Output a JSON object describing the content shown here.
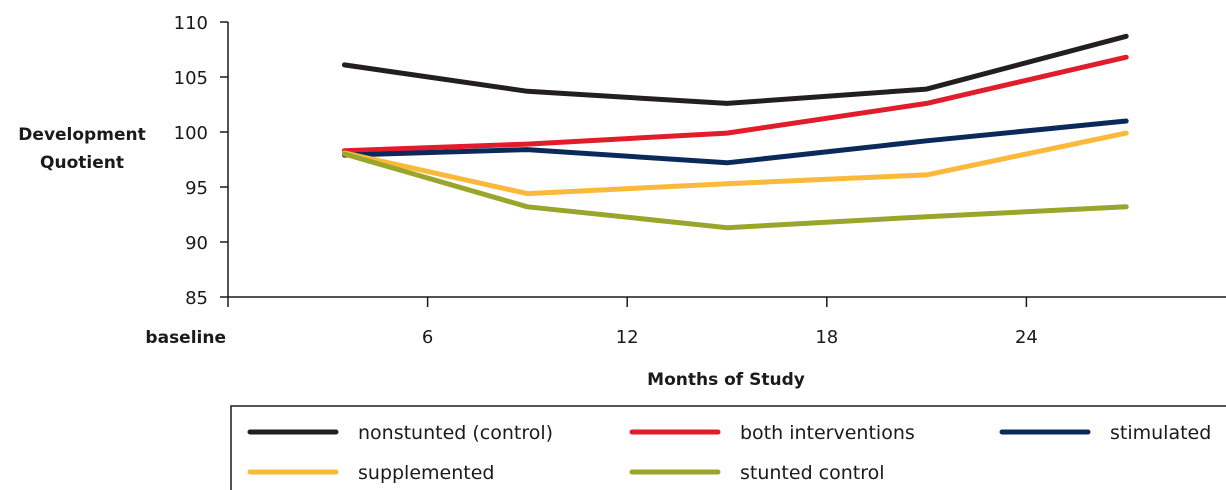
{
  "chart_data": {
    "type": "line",
    "title": "",
    "ylabel_lines": [
      "Development",
      "Quotient"
    ],
    "xlabel": "Months of Study",
    "x_ticks": [
      "baseline",
      "6",
      "12",
      "18",
      "24"
    ],
    "x_tick_values": [
      0,
      6,
      12,
      18,
      24
    ],
    "xlim": [
      0,
      30
    ],
    "ylim": [
      85,
      110
    ],
    "y_ticks": [
      "85",
      "90",
      "95",
      "100",
      "105",
      "110"
    ],
    "y_tick_values": [
      85,
      90,
      95,
      100,
      105,
      110
    ],
    "grid": false,
    "legend_position": "bottom",
    "x": [
      3.5,
      9,
      15,
      21,
      27
    ],
    "series": [
      {
        "name": "nonstunted (control)",
        "color": "#231f20",
        "values": [
          106.1,
          103.7,
          102.6,
          103.9,
          108.7
        ]
      },
      {
        "name": "both interventions",
        "color": "#e21d2b",
        "values": [
          98.3,
          98.9,
          99.9,
          102.6,
          106.8
        ]
      },
      {
        "name": "stimulated",
        "color": "#0b2a5c",
        "values": [
          97.9,
          98.4,
          97.2,
          99.2,
          101.0
        ]
      },
      {
        "name": "supplemented",
        "color": "#fbb93a",
        "values": [
          98.1,
          94.4,
          95.3,
          96.1,
          99.9
        ]
      },
      {
        "name": "stunted control",
        "color": "#99a52b",
        "values": [
          98.0,
          93.2,
          91.3,
          92.3,
          93.2
        ]
      }
    ]
  }
}
